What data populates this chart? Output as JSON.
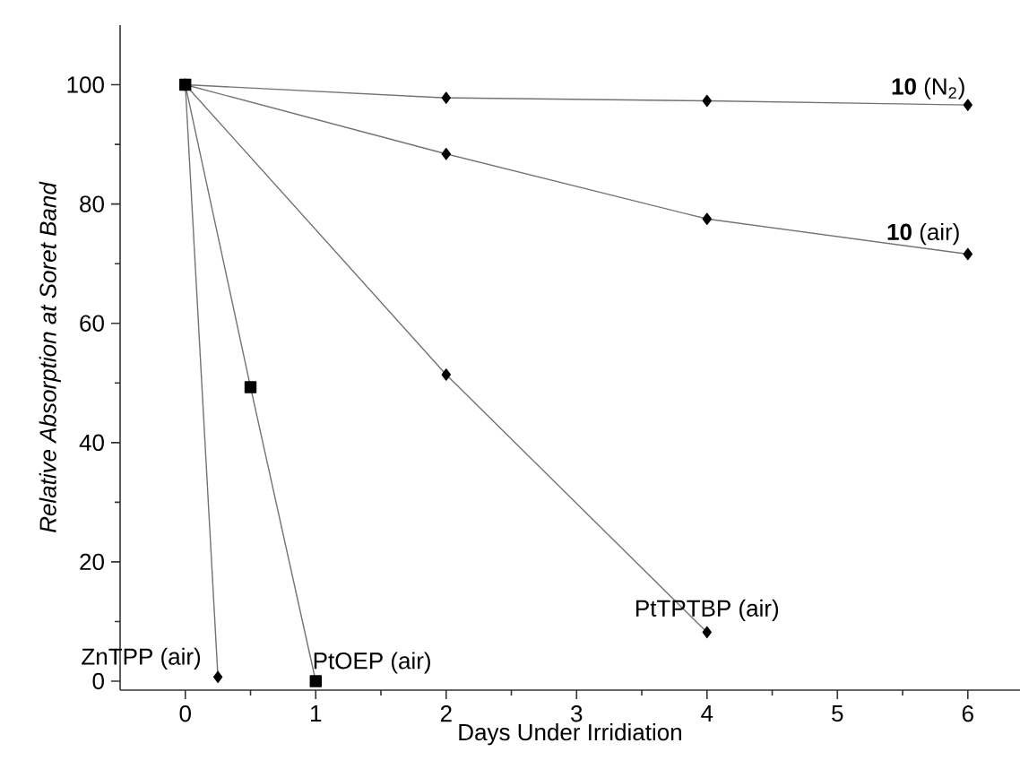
{
  "chart_data": {
    "type": "line",
    "xlabel": "Days Under Irridiation",
    "ylabel": "Relative Absorption at Soret Band",
    "xlim": [
      -0.5,
      6.4
    ],
    "ylim": [
      -1.5,
      110
    ],
    "xticks": [
      0,
      1,
      2,
      3,
      4,
      5,
      6
    ],
    "yticks": [
      0,
      20,
      40,
      60,
      80,
      100
    ],
    "grid": false,
    "legend": false,
    "marker": "diamond",
    "line_style": "solid",
    "series": [
      {
        "name": "PtOEP (air)",
        "color": "#000000",
        "marker": "square",
        "x": [
          0,
          0.5,
          1
        ],
        "values": [
          100,
          49.3,
          0
        ]
      },
      {
        "name": "**10** (N$_{2}$)",
        "color": "#000000",
        "x": [
          0,
          2,
          4,
          6
        ],
        "values": [
          100,
          97.8,
          97.3,
          96.6
        ]
      },
      {
        "name": "**10** (air)",
        "color": "#000000",
        "x": [
          0,
          2,
          4,
          6
        ],
        "values": [
          100,
          88.4,
          77.5,
          71.6
        ]
      },
      {
        "name": "PtTPTBP (air)",
        "color": "#000000",
        "x": [
          0,
          2,
          4
        ],
        "values": [
          100,
          51.4,
          8.2
        ]
      },
      {
        "name": "ZnTPP (air)",
        "color": "#000000",
        "x": [
          0,
          0.25
        ],
        "values": [
          100,
          0.7
        ]
      }
    ]
  }
}
